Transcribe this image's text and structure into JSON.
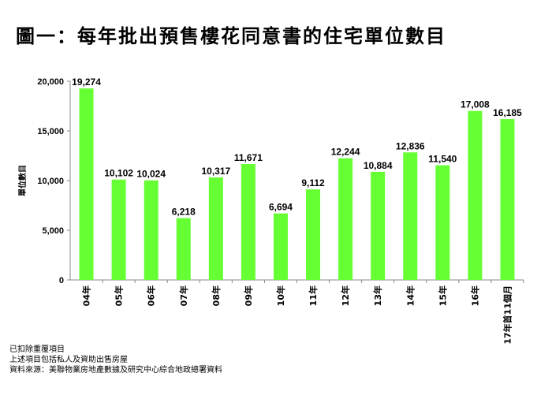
{
  "title": "圖一：每年批出預售樓花同意書的住宅單位數目",
  "notes": [
    "已扣除重覆項目",
    "上述項目包括私人及資助出售房屋",
    "資料來源：美聯物業房地產數據及研究中心綜合地政總署資料"
  ],
  "chart_data": {
    "type": "bar",
    "title": "圖一：每年批出預售樓花同意書的住宅單位數目",
    "xlabel": "",
    "ylabel": "單位數目",
    "ylim": [
      0,
      20000
    ],
    "yticks": [
      0,
      5000,
      10000,
      15000,
      20000
    ],
    "ytick_labels": [
      "0",
      "5,000",
      "10,000",
      "15,000",
      "20,000"
    ],
    "categories": [
      "04年",
      "05年",
      "06年",
      "07年",
      "08年",
      "09年",
      "10年",
      "11年",
      "12年",
      "13年",
      "14年",
      "15年",
      "16年",
      "17年首11個月"
    ],
    "values": [
      19274,
      10102,
      10024,
      6218,
      10317,
      11671,
      6694,
      9112,
      12244,
      10884,
      12836,
      11540,
      17008,
      16185
    ],
    "data_labels": [
      "19,274",
      "10,102",
      "10,024",
      "6,218",
      "10,317",
      "11,671",
      "6,694",
      "9,112",
      "12,244",
      "10,884",
      "12,836",
      "11,540",
      "17,008",
      "16,185"
    ],
    "bar_color": "#66ff33",
    "grid": false,
    "legend": "none"
  }
}
